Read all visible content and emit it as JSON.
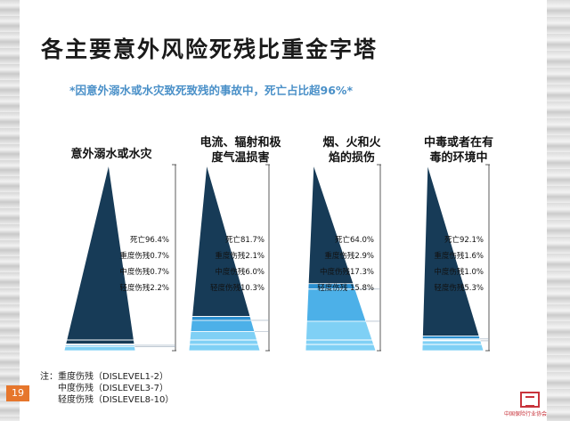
{
  "page": {
    "title": "各主要意外风险死残比重金字塔",
    "subtitle": "*因意外溺水或水灾致死致残的事故中，死亡占比超96%*",
    "page_number": "19",
    "notes": {
      "prefix": "注：",
      "items": [
        "重度伤残（DISLEVEL1-2）",
        "中度伤残（DISLEVEL3-7）",
        "轻度伤残（DISLEVEL8-10）"
      ]
    },
    "logo_text": "中国保险行业协会"
  },
  "colors": {
    "death": "#173b57",
    "severe": "#2a8fd0",
    "moderate": "#4cb0e8",
    "mild": "#7fd0f5",
    "subtitle": "#4a90c8",
    "page_badge": "#e6762c"
  },
  "chart_data": {
    "type": "pyramid",
    "title": "各主要意外风险死残比重金字塔",
    "subtitle": "*因意外溺水或水灾致死致残的事故中，死亡占比超96%*",
    "series_names": [
      "死亡",
      "重度伤残",
      "中度伤残",
      "轻度伤残"
    ],
    "pyramids": [
      {
        "name": "意外溺水或水灾",
        "header_lines": [
          "意外溺水或水灾"
        ],
        "values": [
          96.4,
          0.7,
          0.7,
          2.2
        ],
        "labels": [
          "死亡96.4%",
          "重度伤残0.7%",
          "中度伤残0.7%",
          "轻度伤残2.2%"
        ]
      },
      {
        "name": "电流、辐射和极度气温损害",
        "header_lines": [
          "电流、辐射和极",
          "度气温损害"
        ],
        "values": [
          81.7,
          2.1,
          6.0,
          10.3
        ],
        "labels": [
          "死亡81.7%",
          "重度伤残2.1%",
          "中度伤残6.0%",
          "轻度伤残10.3%"
        ]
      },
      {
        "name": "烟、火和火焰的损伤",
        "header_lines": [
          "烟、火和火",
          "焰的损伤"
        ],
        "values": [
          64.0,
          2.9,
          17.3,
          15.8
        ],
        "labels": [
          "死亡64.0%",
          "重度伤残2.9%",
          "中度伤残17.3%",
          "轻度伤残 15.8%"
        ]
      },
      {
        "name": "中毒或者在有毒的环境中",
        "header_lines": [
          "中毒或者在有",
          "毒的环境中"
        ],
        "values": [
          92.1,
          1.6,
          1.0,
          5.3
        ],
        "labels": [
          "死亡92.1%",
          "重度伤残1.6%",
          "中度伤残1.0%",
          "轻度伤残5.3%"
        ]
      }
    ]
  }
}
